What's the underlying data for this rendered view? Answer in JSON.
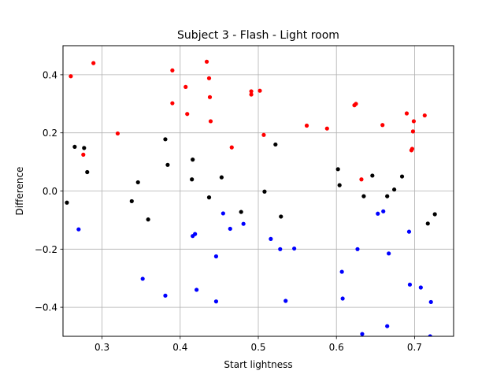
{
  "chart_data": {
    "type": "scatter",
    "title": "Subject 3 - Flash - Light room",
    "xlabel": "Start lightness",
    "ylabel": "Difference",
    "xlim": [
      0.25,
      0.75
    ],
    "ylim": [
      -0.5,
      0.5
    ],
    "xticks": [
      0.3,
      0.4,
      0.5,
      0.6,
      0.7
    ],
    "xtick_labels": [
      "0.3",
      "0.4",
      "0.5",
      "0.6",
      "0.7"
    ],
    "yticks": [
      -0.4,
      -0.2,
      0.0,
      0.2,
      0.4
    ],
    "ytick_labels": [
      "−0.4",
      "−0.2",
      "0.0",
      "0.2",
      "0.4"
    ],
    "grid": true,
    "series": [
      {
        "color": "#ff0000",
        "points": [
          [
            0.26,
            0.395
          ],
          [
            0.289,
            0.44
          ],
          [
            0.276,
            0.125
          ],
          [
            0.32,
            0.198
          ],
          [
            0.39,
            0.415
          ],
          [
            0.39,
            0.302
          ],
          [
            0.407,
            0.358
          ],
          [
            0.409,
            0.265
          ],
          [
            0.434,
            0.445
          ],
          [
            0.437,
            0.388
          ],
          [
            0.438,
            0.323
          ],
          [
            0.439,
            0.24
          ],
          [
            0.466,
            0.15
          ],
          [
            0.491,
            0.343
          ],
          [
            0.491,
            0.332
          ],
          [
            0.502,
            0.345
          ],
          [
            0.507,
            0.193
          ],
          [
            0.562,
            0.225
          ],
          [
            0.588,
            0.215
          ],
          [
            0.623,
            0.295
          ],
          [
            0.625,
            0.3
          ],
          [
            0.632,
            0.04
          ],
          [
            0.659,
            0.227
          ],
          [
            0.69,
            0.267
          ],
          [
            0.696,
            0.14
          ],
          [
            0.697,
            0.145
          ],
          [
            0.698,
            0.205
          ],
          [
            0.699,
            0.24
          ],
          [
            0.713,
            0.26
          ]
        ]
      },
      {
        "color": "#000000",
        "points": [
          [
            0.255,
            -0.04
          ],
          [
            0.265,
            0.152
          ],
          [
            0.277,
            0.148
          ],
          [
            0.281,
            0.065
          ],
          [
            0.338,
            -0.035
          ],
          [
            0.346,
            0.03
          ],
          [
            0.359,
            -0.098
          ],
          [
            0.381,
            0.178
          ],
          [
            0.384,
            0.09
          ],
          [
            0.415,
            0.04
          ],
          [
            0.416,
            0.108
          ],
          [
            0.437,
            -0.022
          ],
          [
            0.453,
            0.047
          ],
          [
            0.478,
            -0.072
          ],
          [
            0.508,
            -0.002
          ],
          [
            0.522,
            0.16
          ],
          [
            0.529,
            -0.088
          ],
          [
            0.602,
            0.075
          ],
          [
            0.604,
            0.02
          ],
          [
            0.635,
            -0.018
          ],
          [
            0.646,
            0.053
          ],
          [
            0.665,
            -0.018
          ],
          [
            0.674,
            0.005
          ],
          [
            0.684,
            0.05
          ],
          [
            0.717,
            -0.112
          ],
          [
            0.726,
            -0.08
          ]
        ]
      },
      {
        "color": "#0000ff",
        "points": [
          [
            0.27,
            -0.132
          ],
          [
            0.352,
            -0.302
          ],
          [
            0.381,
            -0.36
          ],
          [
            0.416,
            -0.155
          ],
          [
            0.419,
            -0.148
          ],
          [
            0.421,
            -0.34
          ],
          [
            0.446,
            -0.225
          ],
          [
            0.446,
            -0.38
          ],
          [
            0.455,
            -0.077
          ],
          [
            0.464,
            -0.13
          ],
          [
            0.481,
            -0.113
          ],
          [
            0.516,
            -0.165
          ],
          [
            0.528,
            -0.2
          ],
          [
            0.535,
            -0.378
          ],
          [
            0.546,
            -0.198
          ],
          [
            0.607,
            -0.278
          ],
          [
            0.608,
            -0.37
          ],
          [
            0.627,
            -0.2
          ],
          [
            0.633,
            -0.492
          ],
          [
            0.653,
            -0.078
          ],
          [
            0.66,
            -0.07
          ],
          [
            0.665,
            -0.465
          ],
          [
            0.667,
            -0.215
          ],
          [
            0.693,
            -0.14
          ],
          [
            0.694,
            -0.322
          ],
          [
            0.708,
            -0.332
          ],
          [
            0.721,
            -0.382
          ],
          [
            0.72,
            -0.5
          ]
        ]
      }
    ]
  }
}
